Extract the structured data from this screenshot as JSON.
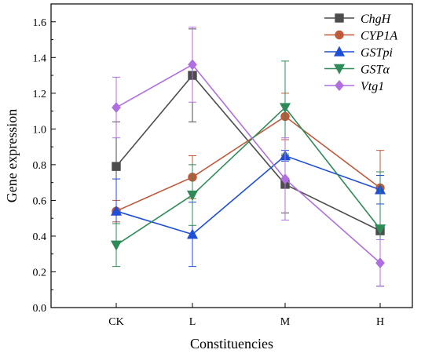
{
  "chart_data": {
    "type": "line",
    "xlabel": "Constituencies",
    "ylabel": "Gene expression",
    "categories": [
      "CK",
      "L",
      "M",
      "H"
    ],
    "ylim": [
      0,
      1.7
    ],
    "yticks": [
      "0.0",
      "0.2",
      "0.4",
      "0.6",
      "0.8",
      "1.0",
      "1.2",
      "1.4",
      "1.6"
    ],
    "legend_position": "top-right",
    "grid": false,
    "series": [
      {
        "name": "ChgH",
        "color": "#4d4d4d",
        "marker": "square",
        "values": [
          0.79,
          1.3,
          0.69,
          0.43
        ],
        "errors": [
          0.25,
          0.26,
          0.16,
          0.31
        ]
      },
      {
        "name": "CYP1A",
        "color": "#c0583a",
        "marker": "circle",
        "values": [
          0.54,
          0.73,
          1.07,
          0.67
        ],
        "errors": [
          0.06,
          0.12,
          0.13,
          0.21
        ]
      },
      {
        "name": "GSTpi",
        "color": "#1f4fd6",
        "marker": "triangle-up",
        "values": [
          0.54,
          0.41,
          0.85,
          0.66
        ],
        "errors": [
          0.18,
          0.18,
          0.03,
          0.08
        ]
      },
      {
        "name": "GSTα",
        "color": "#2e8b57",
        "marker": "triangle-down",
        "values": [
          0.35,
          0.63,
          1.12,
          0.44
        ],
        "errors": [
          0.12,
          0.17,
          0.26,
          0.32
        ]
      },
      {
        "name": "Vtg1",
        "color": "#b06fe0",
        "marker": "diamond",
        "values": [
          1.12,
          1.36,
          0.72,
          0.25
        ],
        "errors": [
          0.17,
          0.21,
          0.23,
          0.13
        ]
      }
    ]
  }
}
